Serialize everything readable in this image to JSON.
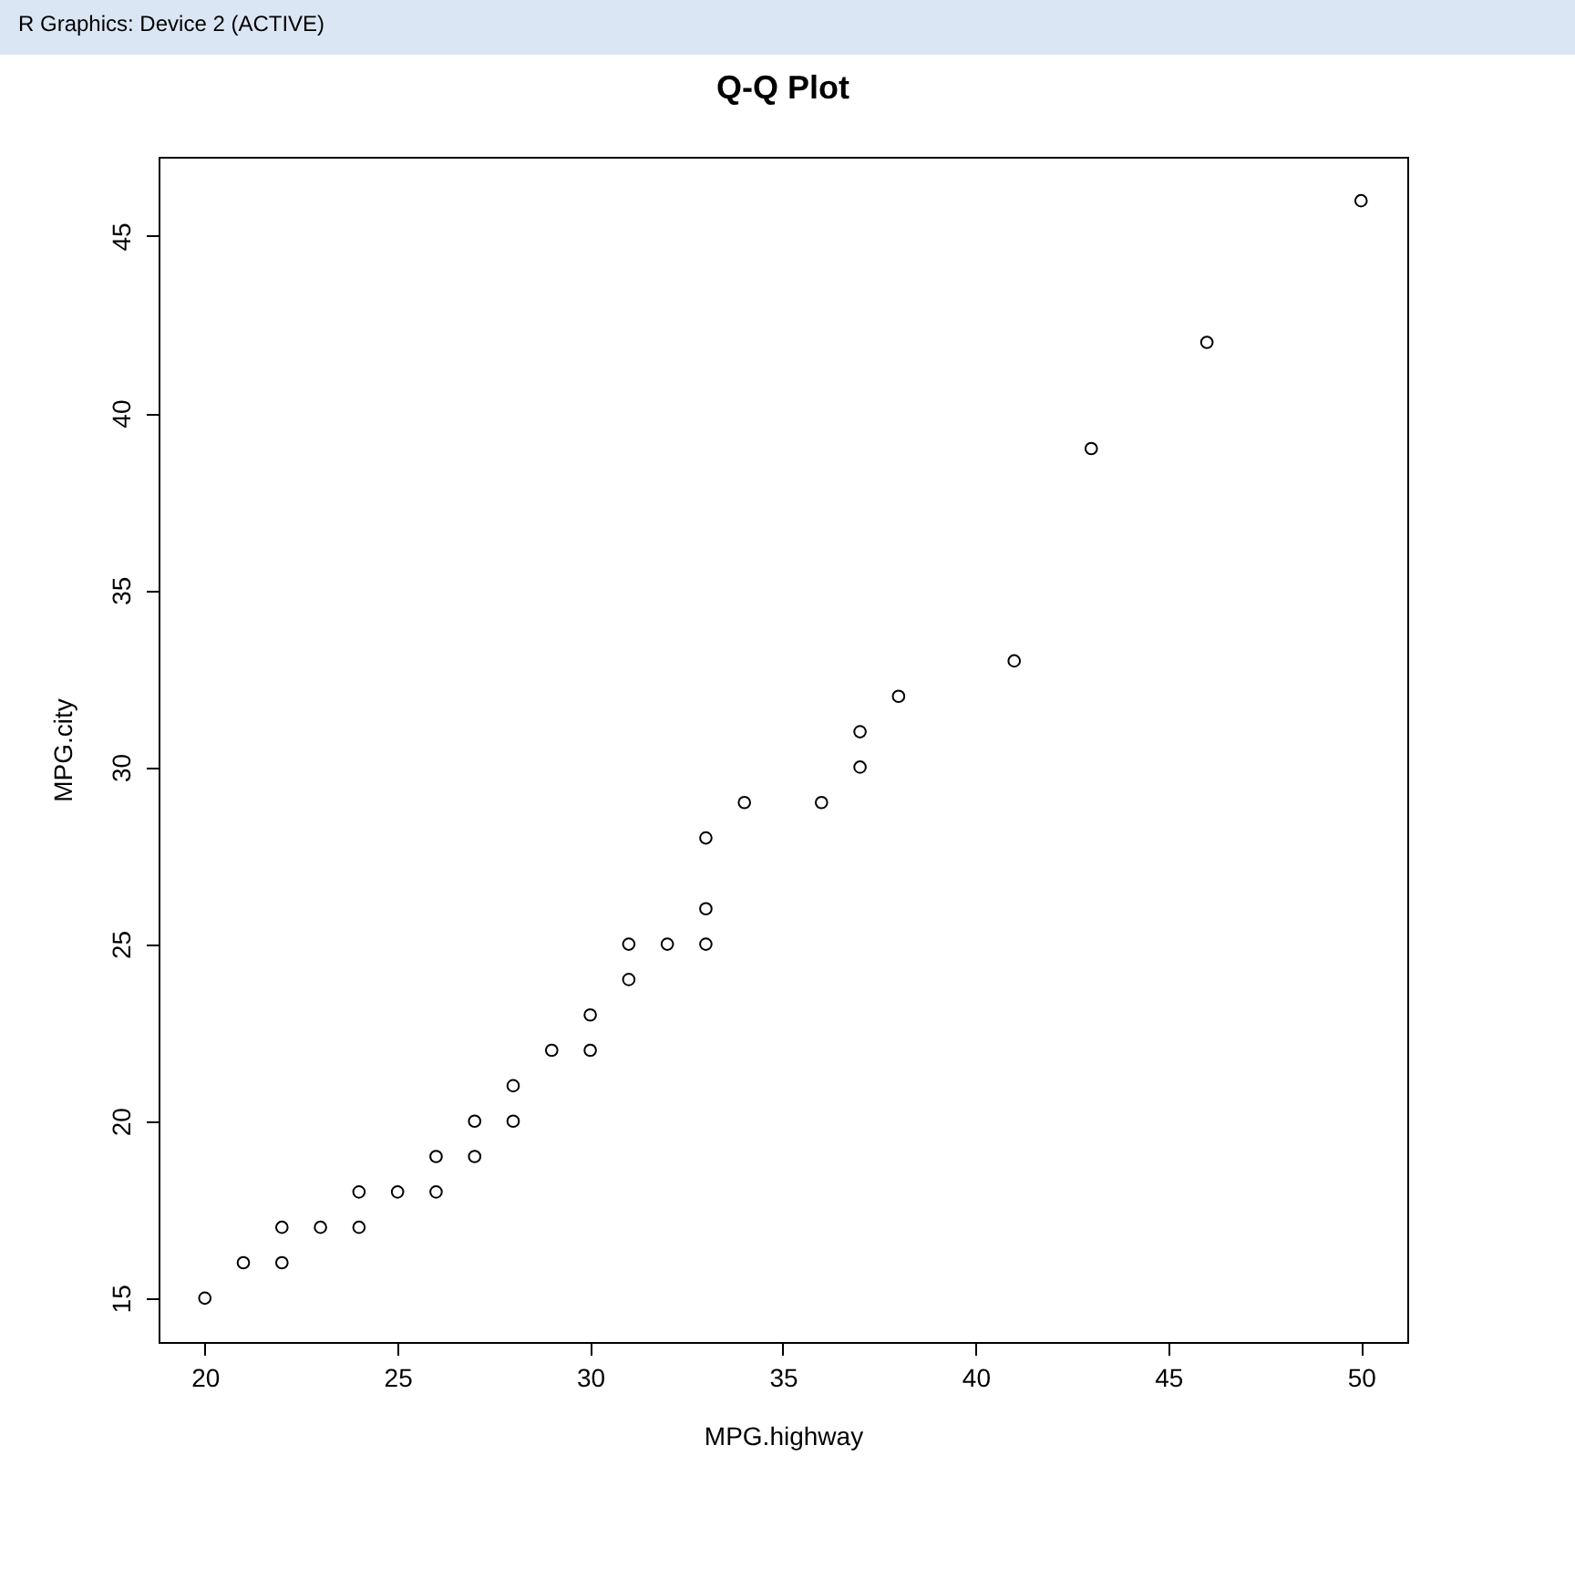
{
  "chart_data": {
    "type": "scatter",
    "title": "Q-Q Plot",
    "xlabel": "MPG.highway",
    "ylabel": "MPG.city",
    "annotations": [
      "R Graphics: Device 2 (ACTIVE)"
    ],
    "x": [
      20,
      21,
      22,
      22,
      23,
      24,
      24,
      25,
      26,
      26,
      27,
      27,
      28,
      28,
      29,
      30,
      30,
      31,
      31,
      32,
      33,
      33,
      33,
      34,
      36,
      37,
      37,
      38,
      41,
      43,
      46,
      50
    ],
    "series": [
      {
        "color": "#000000",
        "values": [
          15,
          16,
          16,
          17,
          17,
          17,
          18,
          18,
          18,
          19,
          19,
          20,
          20,
          21,
          22,
          22,
          23,
          24,
          25,
          25,
          25,
          26,
          28,
          29,
          29,
          30,
          31,
          32,
          33,
          39,
          42,
          46
        ]
      }
    ],
    "xlim": [
      18.8,
      51.2
    ],
    "ylim": [
      13.76,
      47.24
    ],
    "xticks": [
      20,
      25,
      30,
      35,
      40,
      45,
      50
    ],
    "yticks": [
      15,
      20,
      25,
      30,
      35,
      40,
      45
    ],
    "grid": false,
    "legend": false,
    "marker": "circle"
  }
}
